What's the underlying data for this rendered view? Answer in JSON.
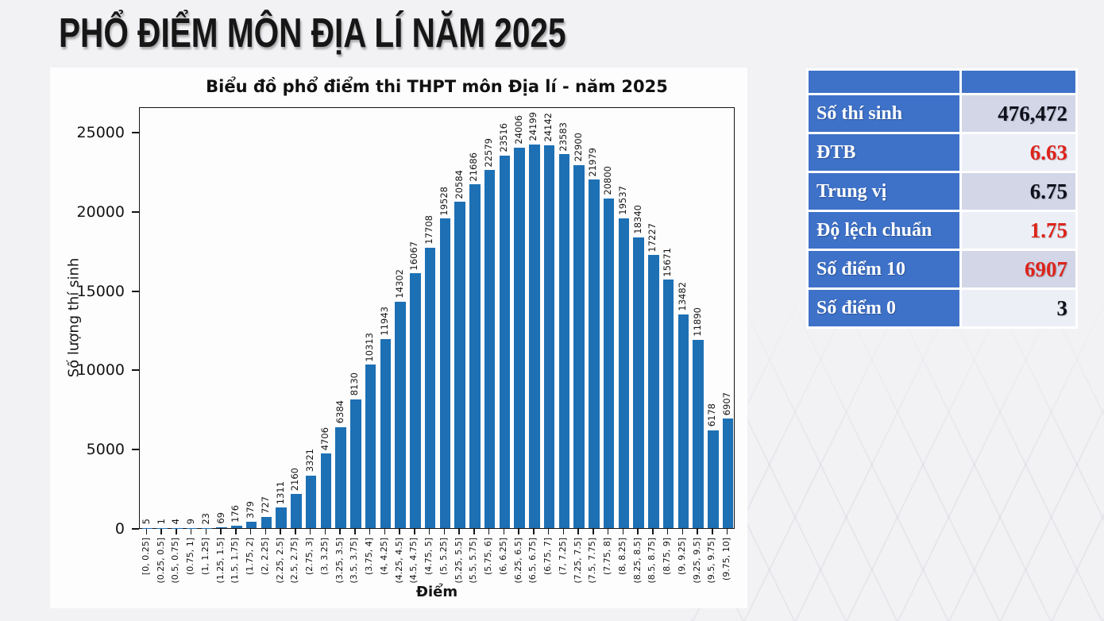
{
  "page_title": "PHỔ ĐIỂM MÔN ĐỊA LÍ NĂM 2025",
  "chart_data": {
    "type": "bar",
    "title": "Biểu đồ phổ điểm thi THPT môn Địa lí - năm 2025",
    "xlabel": "Điểm",
    "ylabel": "Số lượng thí sinh",
    "ylim": [
      0,
      26600
    ],
    "yticks": [
      0,
      5000,
      10000,
      15000,
      20000,
      25000
    ],
    "grid": false,
    "legend": "none",
    "bar_color": "#1d70b4",
    "categories": [
      "[0, 0.25]",
      "(0.25, 0.5]",
      "(0.5, 0.75]",
      "(0.75, 1]",
      "(1, 1.25]",
      "(1.25, 1.5]",
      "(1.5, 1.75]",
      "(1.75, 2]",
      "(2, 2.25]",
      "(2.25, 2.5]",
      "(2.5, 2.75]",
      "(2.75, 3]",
      "(3, 3.25]",
      "(3.25, 3.5]",
      "(3.5, 3.75]",
      "(3.75, 4]",
      "(4, 4.25]",
      "(4.25, 4.5]",
      "(4.5, 4.75]",
      "(4.75, 5]",
      "(5, 5.25]",
      "(5.25, 5.5]",
      "(5.5, 5.75]",
      "(5.75, 6]",
      "(6, 6.25]",
      "(6.25, 6.5]",
      "(6.5, 6.75]",
      "(6.75, 7]",
      "(7, 7.25]",
      "(7.25, 7.5]",
      "(7.5, 7.75]",
      "(7.75, 8]",
      "(8, 8.25]",
      "(8.25, 8.5]",
      "(8.5, 8.75]",
      "(8.75, 9]",
      "(9, 9.25]",
      "(9.25, 9.5]",
      "(9.5, 9.75]",
      "(9.75, 10]"
    ],
    "values": [
      5,
      1,
      4,
      9,
      23,
      69,
      176,
      379,
      727,
      1311,
      2160,
      3321,
      4706,
      6384,
      8130,
      10313,
      11943,
      14302,
      16067,
      17708,
      19528,
      20584,
      21686,
      22579,
      23516,
      24006,
      24199,
      24142,
      23583,
      22900,
      21979,
      20800,
      19537,
      18340,
      17227,
      15671,
      13482,
      11890,
      6178,
      6907
    ]
  },
  "stats_table": {
    "header": {
      "col1": "",
      "col2": ""
    },
    "header_color": "#3e71c8",
    "value_bg_dark": "#d2d6e7",
    "value_bg_light": "#edeff7",
    "text_dark": "#10101c",
    "text_red": "#dd241b",
    "rows": [
      {
        "label": "Số thí sinh",
        "value": "476,472",
        "emphasis": "dark"
      },
      {
        "label": "ĐTB",
        "value": "6.63",
        "emphasis": "red"
      },
      {
        "label": "Trung vị",
        "value": "6.75",
        "emphasis": "dark"
      },
      {
        "label": "Độ lệch chuẩn",
        "value": "1.75",
        "emphasis": "red"
      },
      {
        "label": "Số điểm 10",
        "value": "6907",
        "emphasis": "red"
      },
      {
        "label": "Số điểm 0",
        "value": "3",
        "emphasis": "dark"
      }
    ]
  }
}
